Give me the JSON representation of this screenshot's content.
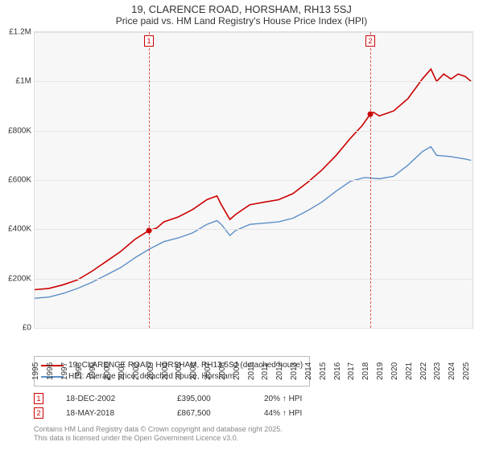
{
  "title_line1": "19, CLARENCE ROAD, HORSHAM, RH13 5SJ",
  "title_line2": "Price paid vs. HM Land Registry's House Price Index (HPI)",
  "chart": {
    "type": "line",
    "background_color": "#f7f7f7",
    "grid_color": "#e5e5e5",
    "border_color": "#dddddd",
    "x_start": 1995,
    "x_end": 2025.5,
    "x_ticks": [
      1995,
      1996,
      1997,
      1998,
      1999,
      2000,
      2001,
      2002,
      2003,
      2004,
      2005,
      2006,
      2007,
      2008,
      2009,
      2010,
      2011,
      2012,
      2013,
      2014,
      2015,
      2016,
      2017,
      2018,
      2019,
      2020,
      2021,
      2022,
      2023,
      2024,
      2025
    ],
    "ylim": [
      0,
      1200000
    ],
    "y_ticks": [
      0,
      200000,
      400000,
      600000,
      800000,
      1000000,
      1200000
    ],
    "y_tick_labels": [
      "£0",
      "£200K",
      "£400K",
      "£600K",
      "£800K",
      "£1M",
      "£1.2M"
    ],
    "axis_font_size": 10,
    "series": [
      {
        "name": "price_paid",
        "color": "#cc0000",
        "width": 1.6,
        "points": [
          [
            1995,
            155000
          ],
          [
            1996,
            160000
          ],
          [
            1997,
            175000
          ],
          [
            1998,
            195000
          ],
          [
            1999,
            230000
          ],
          [
            2000,
            270000
          ],
          [
            2001,
            310000
          ],
          [
            2002,
            360000
          ],
          [
            2002.96,
            395000
          ],
          [
            2003.5,
            405000
          ],
          [
            2004,
            430000
          ],
          [
            2005,
            450000
          ],
          [
            2006,
            480000
          ],
          [
            2007,
            520000
          ],
          [
            2007.7,
            535000
          ],
          [
            2008,
            500000
          ],
          [
            2008.6,
            440000
          ],
          [
            2009,
            460000
          ],
          [
            2010,
            500000
          ],
          [
            2011,
            510000
          ],
          [
            2012,
            520000
          ],
          [
            2013,
            545000
          ],
          [
            2014,
            590000
          ],
          [
            2015,
            640000
          ],
          [
            2016,
            700000
          ],
          [
            2017,
            770000
          ],
          [
            2017.8,
            820000
          ],
          [
            2018.38,
            867500
          ],
          [
            2018.6,
            875000
          ],
          [
            2019,
            860000
          ],
          [
            2020,
            880000
          ],
          [
            2021,
            930000
          ],
          [
            2022,
            1010000
          ],
          [
            2022.6,
            1050000
          ],
          [
            2023,
            1000000
          ],
          [
            2023.5,
            1030000
          ],
          [
            2024,
            1010000
          ],
          [
            2024.5,
            1030000
          ],
          [
            2025,
            1020000
          ],
          [
            2025.4,
            1000000
          ]
        ]
      },
      {
        "name": "hpi",
        "color": "#5b8fc7",
        "width": 1.4,
        "points": [
          [
            1995,
            120000
          ],
          [
            1996,
            125000
          ],
          [
            1997,
            140000
          ],
          [
            1998,
            160000
          ],
          [
            1999,
            185000
          ],
          [
            2000,
            215000
          ],
          [
            2001,
            245000
          ],
          [
            2002,
            285000
          ],
          [
            2003,
            320000
          ],
          [
            2004,
            350000
          ],
          [
            2005,
            365000
          ],
          [
            2006,
            385000
          ],
          [
            2007,
            420000
          ],
          [
            2007.7,
            435000
          ],
          [
            2008,
            420000
          ],
          [
            2008.6,
            375000
          ],
          [
            2009,
            395000
          ],
          [
            2010,
            420000
          ],
          [
            2011,
            425000
          ],
          [
            2012,
            430000
          ],
          [
            2013,
            445000
          ],
          [
            2014,
            475000
          ],
          [
            2015,
            510000
          ],
          [
            2016,
            555000
          ],
          [
            2017,
            595000
          ],
          [
            2018,
            610000
          ],
          [
            2019,
            605000
          ],
          [
            2020,
            615000
          ],
          [
            2021,
            660000
          ],
          [
            2022,
            715000
          ],
          [
            2022.6,
            735000
          ],
          [
            2023,
            700000
          ],
          [
            2024,
            695000
          ],
          [
            2025,
            685000
          ],
          [
            2025.4,
            680000
          ]
        ]
      }
    ],
    "sale_markers": [
      {
        "label": "1",
        "x": 2002.96,
        "y": 395000
      },
      {
        "label": "2",
        "x": 2018.38,
        "y": 867500
      }
    ]
  },
  "legend": {
    "items": [
      {
        "color": "#cc0000",
        "text": "19, CLARENCE ROAD, HORSHAM, RH13 5SJ (detached house)"
      },
      {
        "color": "#5b8fc7",
        "text": "HPI: Average price, detached house, Horsham"
      }
    ]
  },
  "sales": [
    {
      "marker": "1",
      "date": "18-DEC-2002",
      "price": "£395,000",
      "diff": "20% ↑ HPI"
    },
    {
      "marker": "2",
      "date": "18-MAY-2018",
      "price": "£867,500",
      "diff": "44% ↑ HPI"
    }
  ],
  "footnote_line1": "Contains HM Land Registry data © Crown copyright and database right 2025.",
  "footnote_line2": "This data is licensed under the Open Government Licence v3.0."
}
